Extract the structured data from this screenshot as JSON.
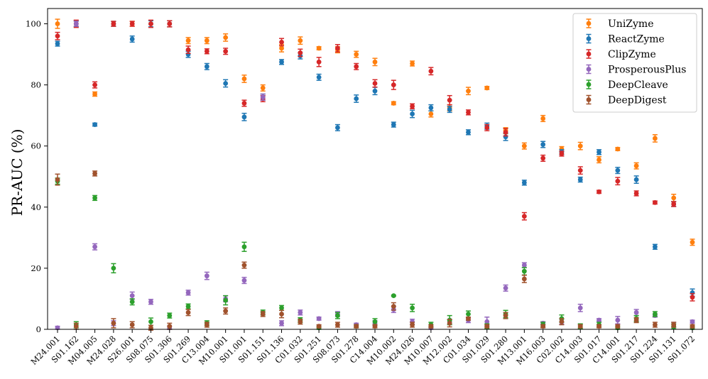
{
  "chart_data": {
    "type": "scatter",
    "ylabel": "PR-AUC (%)",
    "xlabel": "",
    "ylim": [
      0,
      105
    ],
    "yticks": [
      "0",
      "20",
      "40",
      "60",
      "80",
      "100"
    ],
    "legend_position": "top-right",
    "grid": false,
    "categories": [
      "M24.001",
      "S01.162",
      "M04.005",
      "M24.028",
      "S26.001",
      "S08.075",
      "S01.306",
      "S01.269",
      "C13.004",
      "M10.001",
      "S01.001",
      "S01.151",
      "S01.136",
      "C01.032",
      "S01.251",
      "S08.073",
      "S01.278",
      "C14.004",
      "M10.002",
      "M24.026",
      "M10.007",
      "M12.002",
      "C01.034",
      "S01.029",
      "S01.280",
      "M13.001",
      "M16.003",
      "C02.002",
      "C14.003",
      "S01.017",
      "C14.001",
      "S01.217",
      "S01.224",
      "S01.131",
      "S01.072"
    ],
    "series": [
      {
        "name": "UniZyme",
        "color": "#ff7f0e",
        "values": [
          100,
          100,
          77,
          100,
          100,
          100,
          100,
          94.5,
          94.5,
          95.5,
          82,
          79,
          92,
          94.5,
          92,
          91.5,
          90,
          87.5,
          74,
          87,
          70.5,
          72.5,
          78,
          79,
          65,
          60,
          69,
          59,
          60,
          55.5,
          59,
          53.5,
          62.5,
          43,
          28.5
        ],
        "errors": [
          1.5,
          1,
          0.7,
          0.8,
          0.8,
          1,
          1,
          1,
          1,
          1.2,
          1.2,
          1,
          1.2,
          1.2,
          0.5,
          1,
          1,
          1.2,
          0.5,
          0.8,
          1,
          1,
          1.2,
          0.5,
          1,
          1,
          1,
          0.8,
          1.2,
          1,
          0.5,
          1,
          1.2,
          1.2,
          1
        ]
      },
      {
        "name": "ReactZyme",
        "color": "#1f77b4",
        "values": [
          93.5,
          100,
          67,
          100,
          95,
          100,
          100,
          90,
          86,
          80.5,
          69.5,
          76,
          87.5,
          89.5,
          82.5,
          66,
          75.5,
          78,
          67,
          70.5,
          72.5,
          72,
          64.5,
          66.5,
          63,
          48,
          60.5,
          58,
          49,
          58,
          52,
          49,
          27,
          41,
          12
        ],
        "errors": [
          0.8,
          1,
          0.5,
          0.8,
          1,
          1,
          1,
          1,
          1,
          1.2,
          1.2,
          1,
          0.8,
          1,
          1,
          1,
          1.2,
          1.2,
          0.8,
          1.2,
          1,
          1,
          0.8,
          1,
          1.2,
          0.8,
          1,
          0.8,
          0.8,
          0.8,
          1,
          1.2,
          0.8,
          0.8,
          1.2
        ]
      },
      {
        "name": "ClipZyme",
        "color": "#d62728",
        "values": [
          96,
          100,
          80,
          100,
          100,
          100,
          100,
          91.5,
          91,
          91,
          74,
          75.5,
          94,
          90.5,
          87.5,
          92,
          86,
          80.5,
          80,
          73,
          84.5,
          75,
          71,
          66,
          64.5,
          37,
          56,
          57.5,
          52,
          45,
          48.5,
          44.5,
          41.5,
          41,
          10.5
        ],
        "errors": [
          1.2,
          1.2,
          1,
          0.8,
          0.8,
          1.2,
          1,
          1.2,
          0.8,
          1,
          1,
          1,
          1.2,
          1.2,
          1.5,
          1.2,
          1,
          1.2,
          1.5,
          0.8,
          1.2,
          1.5,
          0.8,
          1,
          1.2,
          1.2,
          1,
          0.8,
          1.2,
          0.5,
          1.2,
          0.8,
          0.5,
          0.8,
          1.2
        ]
      },
      {
        "name": "ProsperousPlus",
        "color": "#9467bd",
        "values": [
          0.5,
          100,
          27,
          2,
          11,
          9,
          0.5,
          12,
          17.5,
          10,
          16,
          76,
          2,
          5.5,
          3.5,
          5,
          1.5,
          2,
          6.5,
          2.5,
          0.5,
          2.5,
          3,
          2.5,
          13.5,
          21,
          2,
          2.5,
          7,
          3,
          3,
          5.5,
          4.5,
          1.5,
          2.5
        ],
        "errors": [
          0.5,
          0.8,
          1,
          0.8,
          1.2,
          0.8,
          0.5,
          0.8,
          1.2,
          1,
          1,
          1,
          0.8,
          0.8,
          0.5,
          0.8,
          0.5,
          0.8,
          1,
          0.8,
          0.5,
          0.8,
          0.8,
          1.5,
          1,
          0.8,
          0.5,
          0.8,
          1.2,
          0.5,
          1.2,
          1,
          0.5,
          0.8,
          0.5
        ]
      },
      {
        "name": "DeepCleave",
        "color": "#2ca02c",
        "values": [
          48.5,
          1.5,
          43,
          20,
          9,
          2.5,
          4.5,
          7.5,
          2,
          9.5,
          27,
          5.5,
          7,
          3,
          0.5,
          4.5,
          1,
          2.5,
          11,
          7,
          1.5,
          3,
          5,
          1,
          5,
          19,
          1.5,
          3.5,
          1,
          1.5,
          0.5,
          3.5,
          5,
          1,
          0.5
        ],
        "errors": [
          1,
          1,
          0.8,
          1.5,
          1,
          1.2,
          0.8,
          0.8,
          0.8,
          1.5,
          1.5,
          0.8,
          0.8,
          0.8,
          0.5,
          1,
          0.5,
          1,
          0.2,
          1.2,
          0.8,
          1.5,
          1,
          0.8,
          1.2,
          1.2,
          0.8,
          1.2,
          0.8,
          0.8,
          0.5,
          1,
          0.8,
          0.8,
          0.5
        ]
      },
      {
        "name": "DeepDigest",
        "color": "#a0522d",
        "values": [
          49,
          1,
          51,
          2,
          1.5,
          0.5,
          1,
          5.5,
          1.5,
          6,
          21,
          5,
          5,
          2.5,
          1,
          1.5,
          1,
          1,
          7.5,
          1.5,
          1,
          2,
          3.5,
          1,
          4.5,
          16.5,
          1,
          2.5,
          1,
          1,
          1,
          3,
          1.5,
          1.5,
          1
        ],
        "errors": [
          1.8,
          1,
          0.8,
          1.5,
          1,
          0.8,
          1,
          1,
          0.8,
          1,
          1,
          0.8,
          1.2,
          0.8,
          0.5,
          0.8,
          0.5,
          0.5,
          1.2,
          0.8,
          0.5,
          1.2,
          0.5,
          0.5,
          1,
          1.2,
          0.5,
          1,
          0.5,
          0.5,
          0.5,
          0.8,
          0.8,
          0.8,
          0.5
        ]
      }
    ]
  }
}
